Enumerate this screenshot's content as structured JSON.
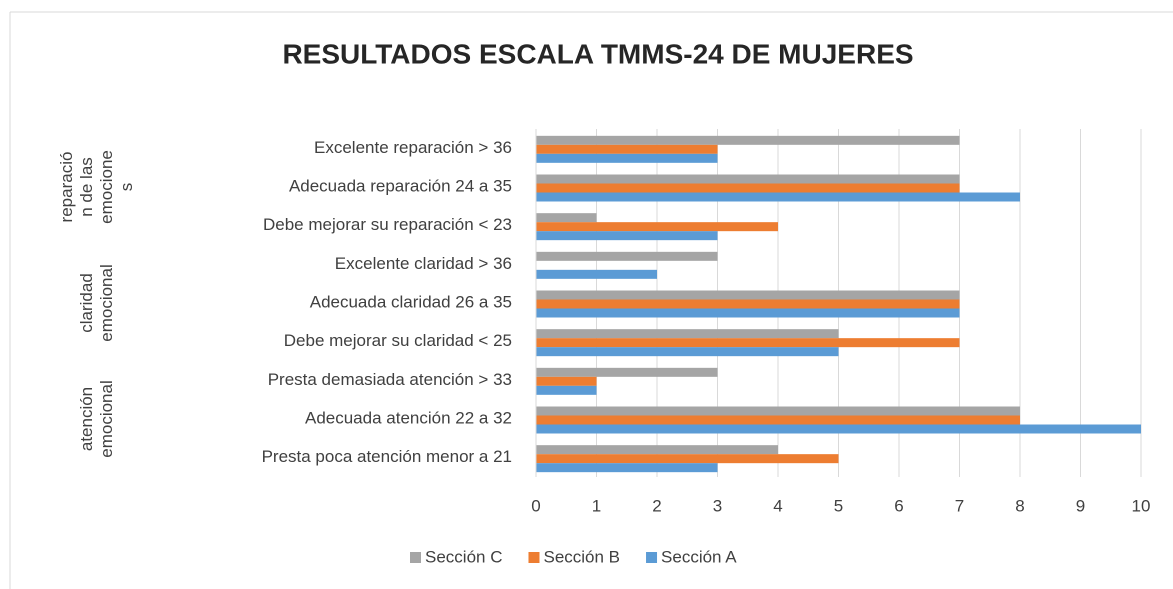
{
  "chart_data": {
    "type": "bar",
    "orientation": "horizontal",
    "title": "RESULTADOS ESCALA TMMS-24 DE MUJERES",
    "categories": [
      "Excelente reparación > 36",
      "Adecuada reparación 24 a 35",
      "Debe mejorar su reparación  < 23",
      "Excelente claridad > 36",
      "Adecuada claridad 26 a 35",
      "Debe mejorar su claridad < 25",
      "Presta demasiada atención > 33",
      "Adecuada atención 22 a 32",
      "Presta poca atención menor a 21"
    ],
    "groups": [
      {
        "label_lines": [
          "reparació",
          "n de las",
          "emocione",
          "s"
        ]
      },
      {
        "label_lines": [
          "claridad",
          "emocional"
        ]
      },
      {
        "label_lines": [
          "atención",
          "emocional"
        ]
      }
    ],
    "series": [
      {
        "name": "Sección C",
        "color": "#a5a5a5",
        "values": [
          7,
          7,
          1,
          3,
          7,
          5,
          3,
          8,
          4
        ]
      },
      {
        "name": "Sección B",
        "color": "#ed7d31",
        "values": [
          3,
          7,
          4,
          0,
          7,
          7,
          1,
          8,
          5
        ]
      },
      {
        "name": "Sección A",
        "color": "#5b9bd5",
        "values": [
          3,
          8,
          3,
          2,
          7,
          5,
          1,
          10,
          3
        ]
      }
    ],
    "xlim": [
      0,
      10
    ],
    "xticks": [
      0,
      1,
      2,
      3,
      4,
      5,
      6,
      7,
      8,
      9,
      10
    ],
    "grid": true,
    "legend": "bottom"
  }
}
